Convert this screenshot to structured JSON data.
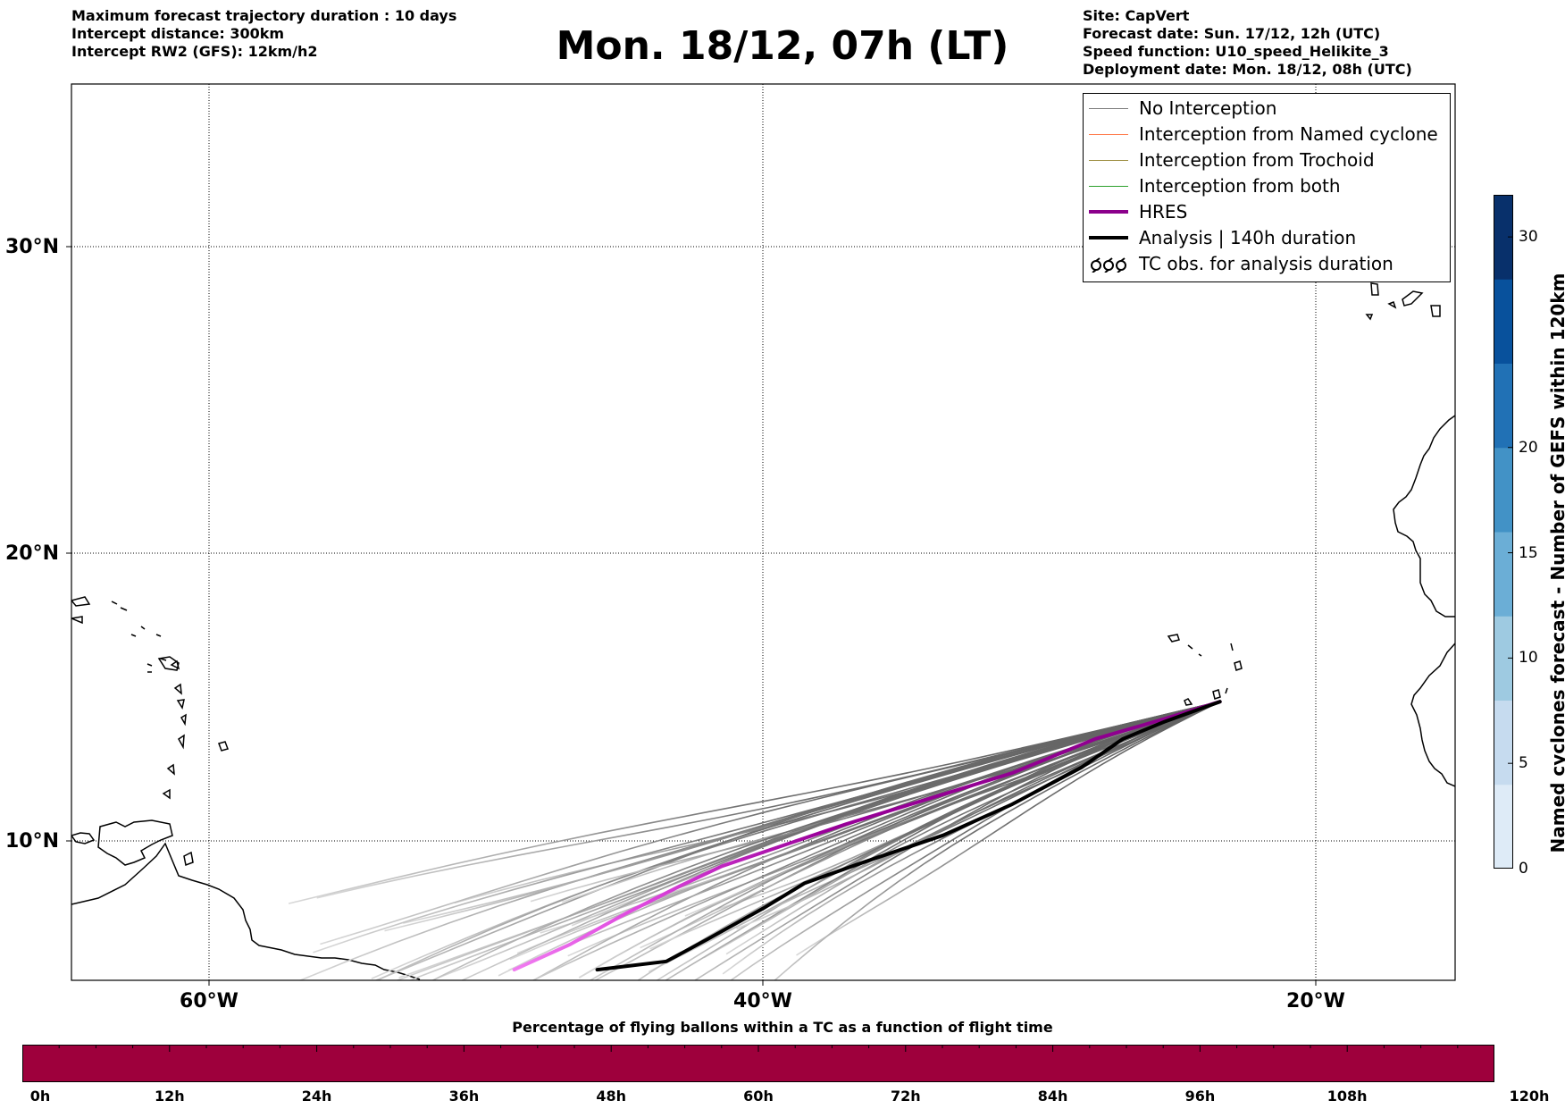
{
  "header": {
    "left_lines": [
      "Maximum forecast trajectory duration : 10 days",
      "Intercept distance: 300km",
      "Intercept RW2 (GFS):  12km/h2"
    ],
    "title": "Mon. 18/12, 07h (LT)",
    "right_lines": [
      "Site: CapVert",
      "Forecast date: Sun. 17/12, 12h (UTC)",
      "Speed function: U10_speed_Helikite_3",
      "Deployment date: Mon. 18/12, 08h (UTC)"
    ]
  },
  "map": {
    "lon_range": [
      -65,
      -15
    ],
    "lat_range": [
      5.4,
      34.7
    ],
    "lat_labels": [
      "30°N",
      "20°N",
      "10°N"
    ],
    "lon_labels": [
      "60°W",
      "40°W",
      "20°W"
    ],
    "launch_site": [
      -23.5,
      14.9
    ],
    "hres_track": [
      [
        -23.5,
        14.9
      ],
      [
        -25.5,
        14.3
      ],
      [
        -28,
        13.6
      ],
      [
        -31,
        12.4
      ],
      [
        -34,
        11.5
      ],
      [
        -37,
        10.6
      ],
      [
        -40,
        9.6
      ],
      [
        -41.5,
        9.1
      ],
      [
        -43,
        8.4
      ],
      [
        -45,
        7.4
      ],
      [
        -47,
        6.3
      ],
      [
        -49,
        5.4
      ]
    ],
    "analysis_track": [
      [
        -23.5,
        14.9
      ],
      [
        -25.5,
        14.2
      ],
      [
        -27,
        13.6
      ],
      [
        -28.5,
        12.6
      ],
      [
        -31,
        11.3
      ],
      [
        -33.5,
        10.2
      ],
      [
        -36.5,
        9.2
      ],
      [
        -38.5,
        8.5
      ],
      [
        -40,
        7.6
      ],
      [
        -42,
        6.5
      ],
      [
        -43.5,
        5.7
      ],
      [
        -46,
        5.4
      ]
    ]
  },
  "legend": {
    "items": [
      {
        "label": "No Interception",
        "color": "#808080",
        "style": "line"
      },
      {
        "label": "Interception from Named cyclone",
        "color": "#ff7f50",
        "style": "line"
      },
      {
        "label": "Interception from Trochoid",
        "color": "#9a8a3a",
        "style": "line"
      },
      {
        "label": "Interception from both",
        "color": "#2ca02c",
        "style": "line"
      },
      {
        "label": "HRES",
        "color": "#8b008b",
        "style": "thick"
      },
      {
        "label": "Analysis | 140h duration",
        "color": "#000000",
        "style": "thick"
      },
      {
        "label": "TC obs. for analysis duration",
        "color": "#000000",
        "style": "tc-symbol"
      }
    ]
  },
  "colorbar": {
    "label": "Named cyclones forecast - Number of GEFS within 120km",
    "ticks": [
      "0",
      "5",
      "10",
      "15",
      "20",
      "30"
    ],
    "tick_values": [
      0,
      5,
      10,
      15,
      20,
      30
    ],
    "max": 32,
    "colors": [
      "#deebf7",
      "#c6dbef",
      "#9ecae1",
      "#6baed6",
      "#4292c6",
      "#2171b5",
      "#08519c",
      "#08306b"
    ]
  },
  "bottom_bar": {
    "title": "Percentage of flying ballons within a TC as a function of flight time",
    "ticks": [
      "0h",
      "12h",
      "24h",
      "36h",
      "48h",
      "60h",
      "72h",
      "84h",
      "96h",
      "108h",
      "120h"
    ],
    "color": "#9e003c"
  }
}
